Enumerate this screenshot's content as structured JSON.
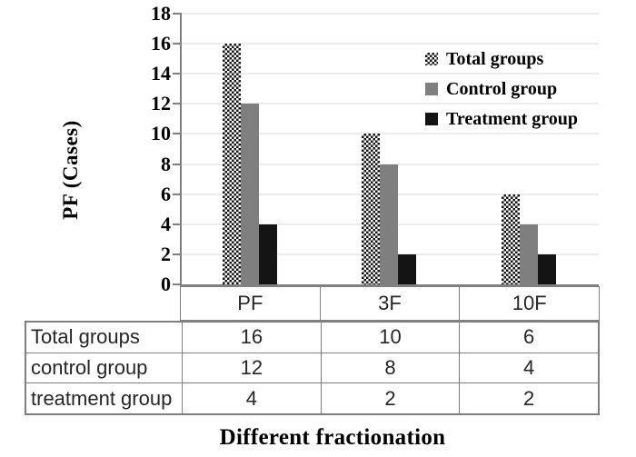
{
  "chart_data": {
    "type": "bar",
    "categories": [
      "PF",
      "3F",
      "10F"
    ],
    "series": [
      {
        "name": "Total groups",
        "values": [
          16,
          10,
          6
        ],
        "fill": "checkered-pattern",
        "color": "#141414"
      },
      {
        "name": "Control group",
        "values": [
          12,
          8,
          4
        ],
        "fill": "solid",
        "color": "#7f7f7f"
      },
      {
        "name": "Treatment group",
        "values": [
          4,
          2,
          2
        ],
        "fill": "solid",
        "color": "#141414"
      }
    ],
    "ylabel": "PF (Cases)",
    "xlabel": "Different fractionation",
    "ylim": [
      0,
      18
    ],
    "ytick_step": 2,
    "ytick_labels": [
      "18",
      "16",
      "14",
      "12",
      "10",
      "8",
      "6",
      "4",
      "2",
      "0"
    ],
    "grid": true,
    "gridline_color": "#d9d9d9",
    "axis_color": "#808080",
    "legend_position": "top-right"
  },
  "data_table": {
    "column_headers": [
      "PF",
      "3F",
      "10F"
    ],
    "rows": [
      {
        "label": "Total groups",
        "values": [
          "16",
          "10",
          "6"
        ]
      },
      {
        "label": "control group",
        "values": [
          "12",
          "8",
          "4"
        ]
      },
      {
        "label": "treatment group",
        "values": [
          "4",
          "2",
          "2"
        ]
      }
    ]
  },
  "colors": {
    "background": "#ffffff",
    "pattern_fg": "#141414",
    "control_gray": "#7f7f7f",
    "treatment_black": "#141414",
    "gridline": "#d9d9d9",
    "axis_and_borders": "#808080",
    "text": "#000000"
  }
}
